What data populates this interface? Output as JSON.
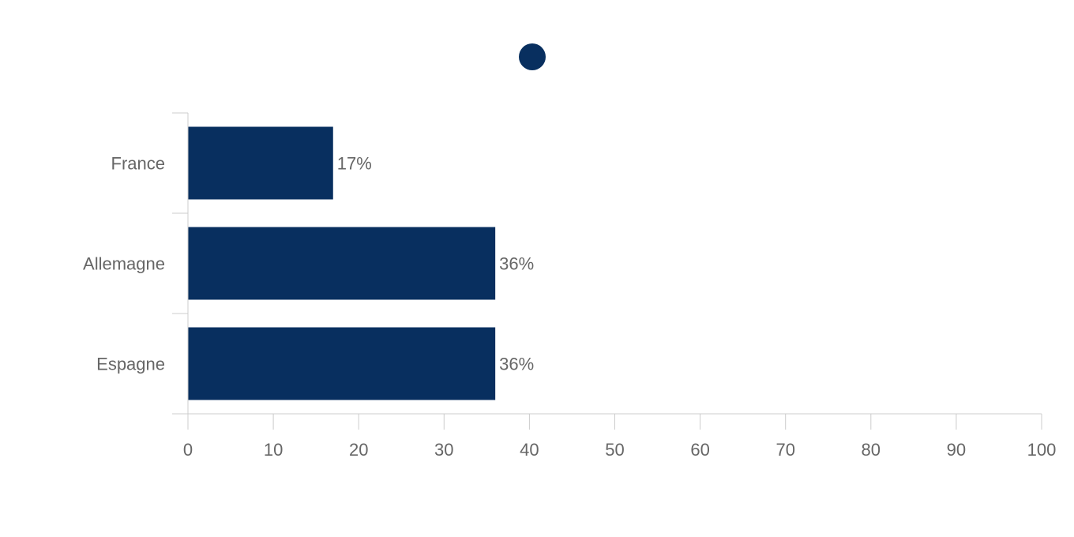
{
  "chart_data": {
    "type": "bar",
    "orientation": "horizontal",
    "categories": [
      "France",
      "Allemagne",
      "Espagne"
    ],
    "series": [
      {
        "values": [
          17,
          36,
          36
        ]
      }
    ],
    "data_labels": [
      "17%",
      "36%",
      "36%"
    ],
    "xlim": [
      0,
      100
    ],
    "x_ticks": [
      0,
      10,
      20,
      30,
      40,
      50,
      60,
      70,
      80,
      90,
      100
    ],
    "legend": {
      "position": "top-center",
      "marker": "circle"
    },
    "grid": false,
    "colors": {
      "bar": "#082f5f",
      "axis": "#cccccc",
      "text": "#666666"
    }
  }
}
